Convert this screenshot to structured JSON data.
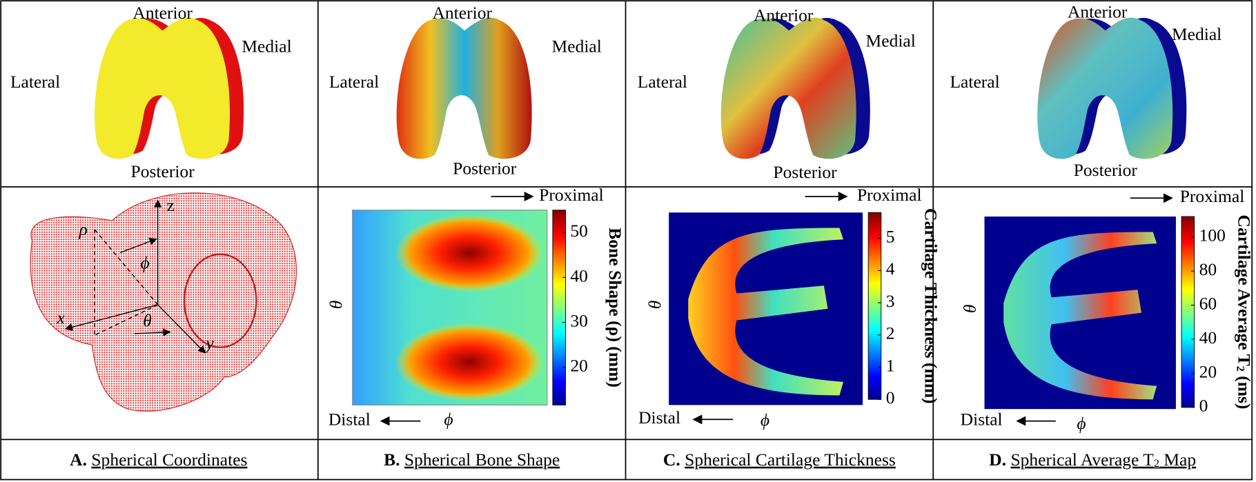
{
  "panels": [
    {
      "caption": {
        "letter": "A.",
        "title": [
          "Spherical Coordinates"
        ]
      },
      "views": [
        "Anterior",
        "Medial",
        "Lateral",
        "Posterior"
      ],
      "axes": [
        "z",
        "ρ",
        "ϕ",
        "x",
        "θ",
        "y"
      ]
    },
    {
      "caption": {
        "letter": "B.",
        "title": [
          "Spherical Bone Shape"
        ]
      },
      "views": [
        "Anterior",
        "Medial",
        "Lateral",
        "Posterior"
      ],
      "map": {
        "proximal": "Proximal",
        "distal": "Distal",
        "theta": "θ",
        "phi": "ϕ",
        "colorbar": {
          "label": [
            "Bone Shape (ρ) (mm)"
          ],
          "ylim": [
            11.6,
            55
          ],
          "yticks": [
            20,
            30,
            40,
            50
          ]
        }
      }
    },
    {
      "caption": {
        "letter": "C.",
        "title": [
          "Spherical Cartilage Thickness"
        ]
      },
      "views": [
        "Anterior",
        "Medial",
        "Lateral",
        "Posterior"
      ],
      "map": {
        "proximal": "Proximal",
        "distal": "Distal",
        "theta": "θ",
        "phi": "ϕ",
        "colorbar": {
          "label": [
            "Cartilage Thickness (mm)"
          ],
          "ylim": [
            0,
            5.8
          ],
          "yticks": [
            0,
            1,
            2,
            3,
            4,
            5
          ]
        }
      }
    },
    {
      "caption": {
        "letter": "D.",
        "title": [
          "Spherical Average T",
          "2",
          " Map"
        ]
      },
      "views": [
        "Anterior",
        "Medial",
        "Lateral",
        "Posterior"
      ],
      "map": {
        "proximal": "Proximal",
        "distal": "Distal",
        "theta": "θ",
        "phi": "ϕ",
        "colorbar": {
          "label": [
            "Cartilage Average T",
            "2",
            " (ms)"
          ],
          "ylim": [
            0,
            112
          ],
          "yticks": [
            0,
            20,
            40,
            60,
            80,
            100
          ]
        }
      }
    }
  ]
}
